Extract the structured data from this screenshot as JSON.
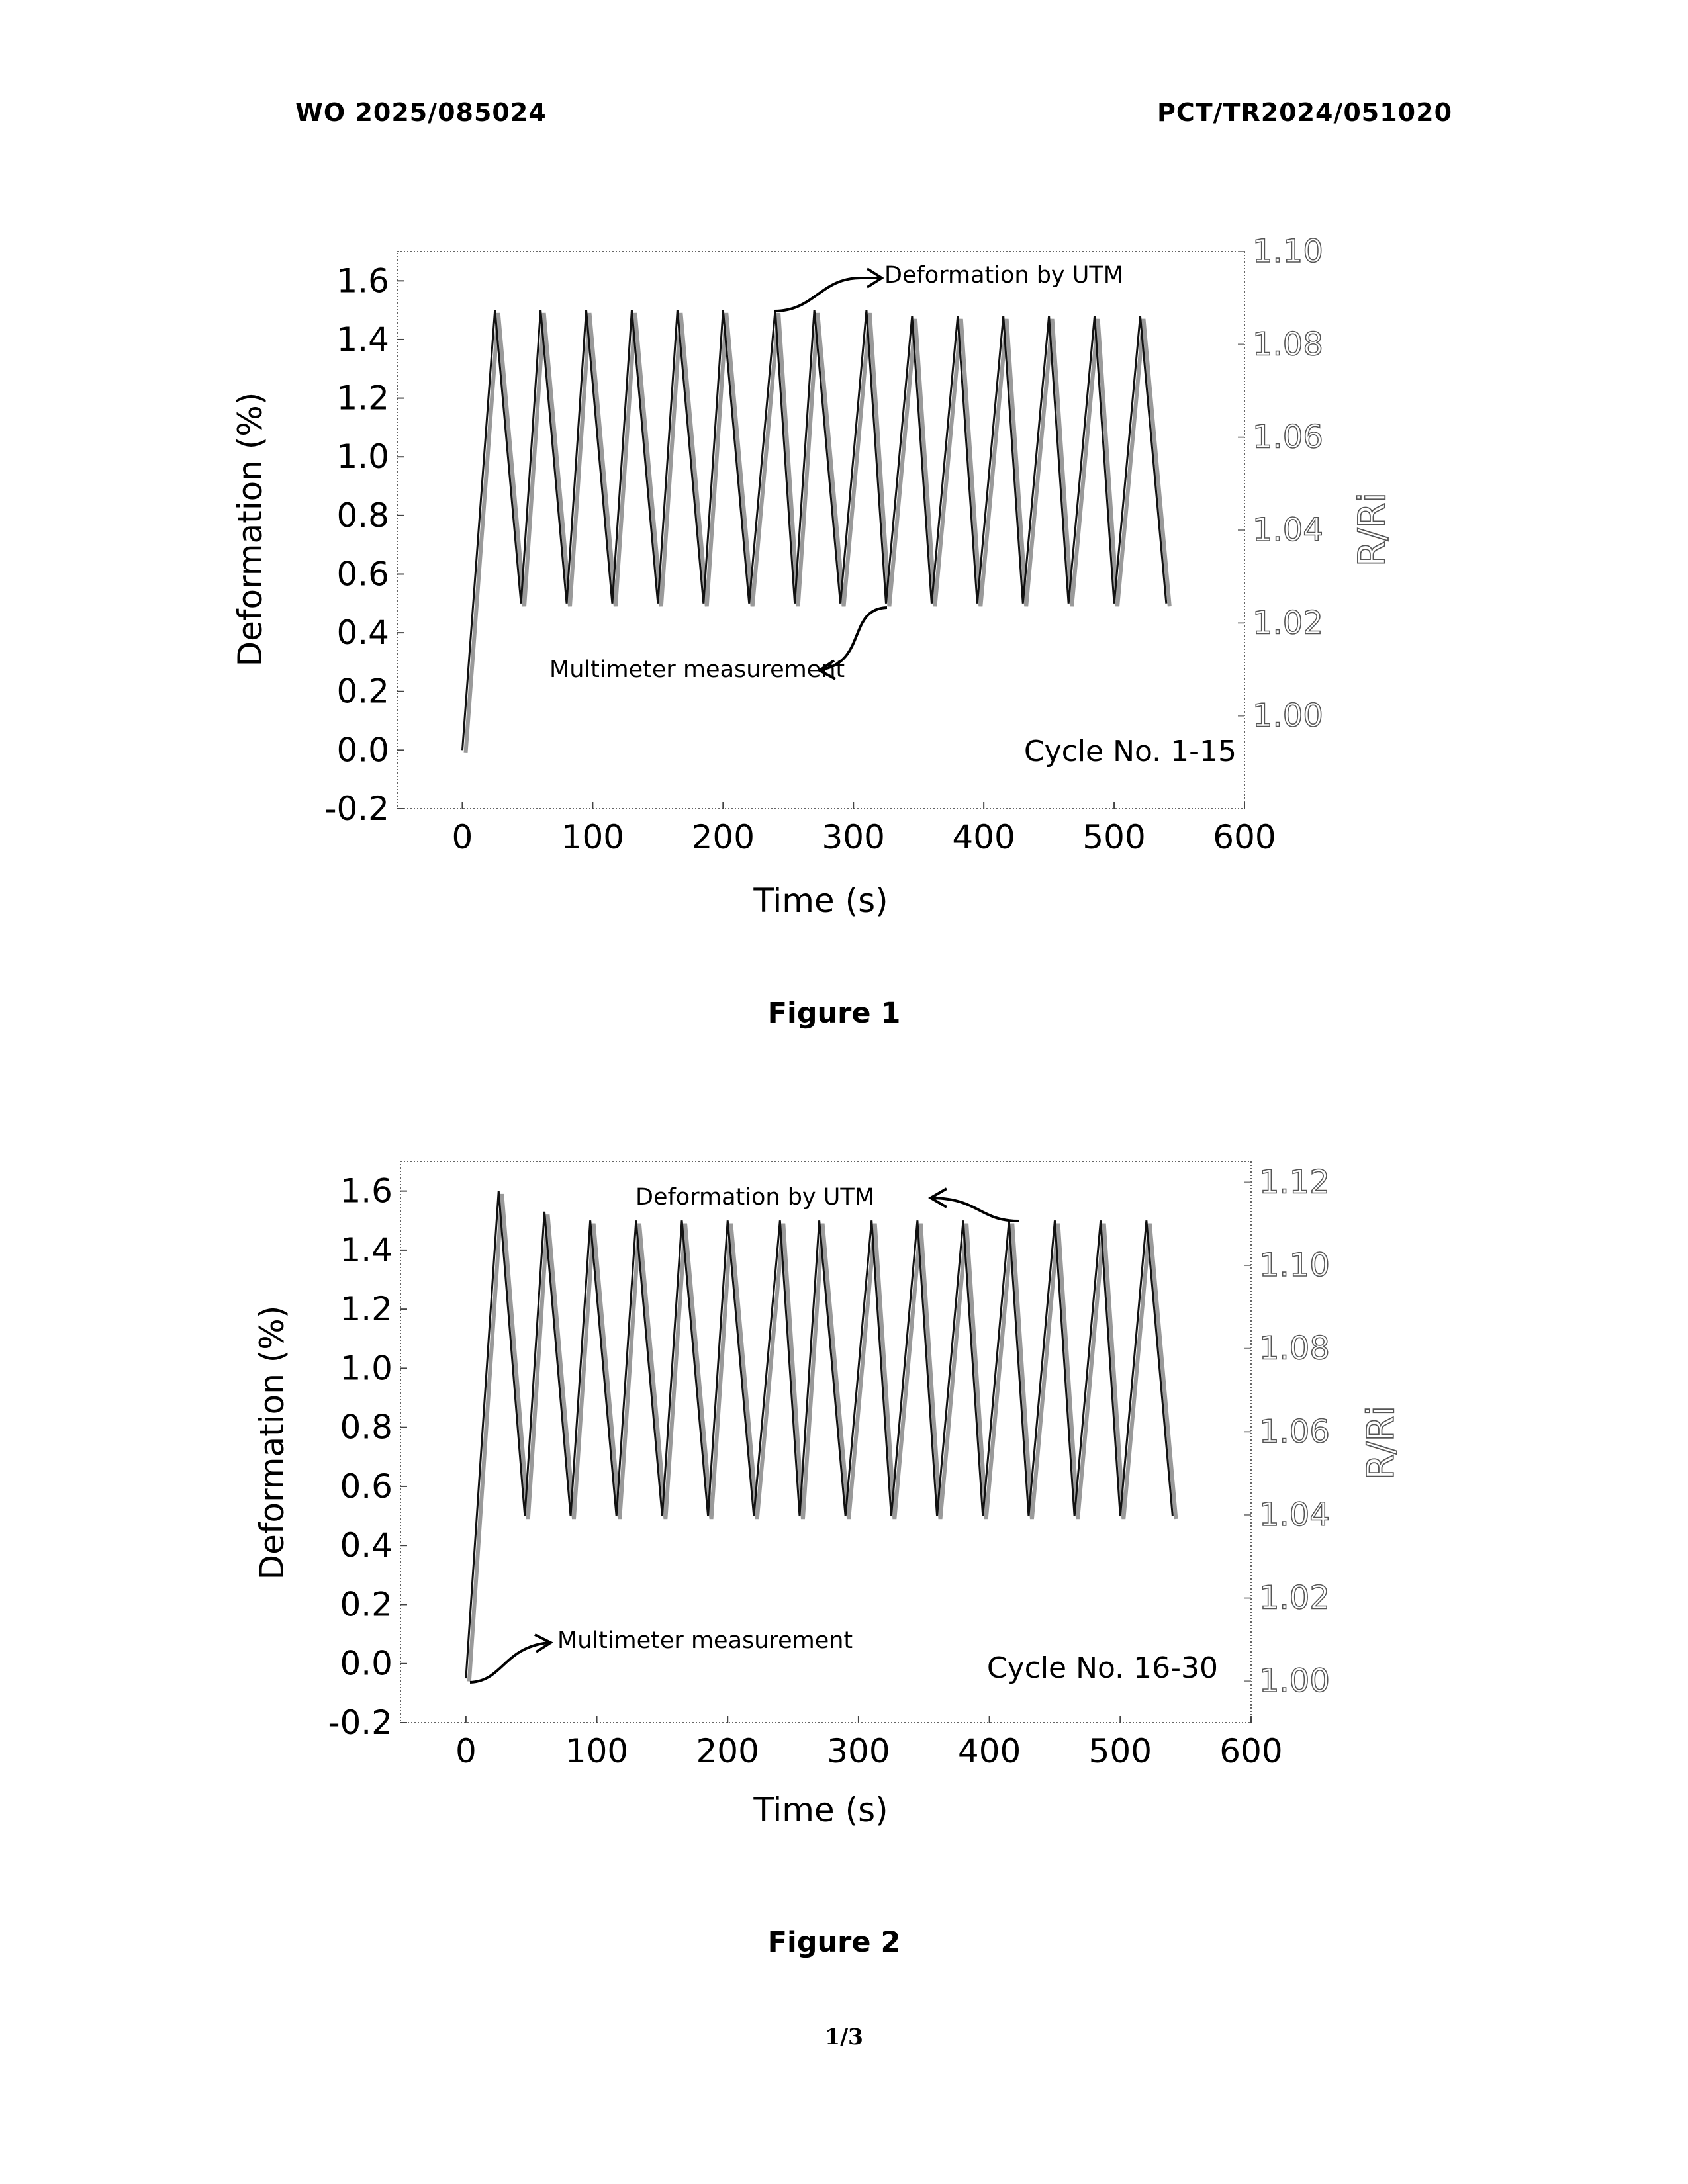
{
  "header": {
    "left": "WO 2025/085024",
    "right": "PCT/TR2024/051020"
  },
  "page_number": "1/3",
  "figures": [
    {
      "caption": "Figure 1"
    },
    {
      "caption": "Figure 2"
    }
  ],
  "chart_data": [
    {
      "type": "line",
      "title": "",
      "xlabel": "Time (s)",
      "ylabel": "Deformation (%)",
      "y2label": "R/Ri",
      "xlim": [
        -50,
        600
      ],
      "ylim": [
        -0.2,
        1.7
      ],
      "y2lim": [
        0.98,
        1.1
      ],
      "xticks": [
        "0",
        "100",
        "200",
        "300",
        "400",
        "500",
        "600"
      ],
      "yticks": [
        "-0.2",
        "0.0",
        "0.2",
        "0.4",
        "0.6",
        "0.8",
        "1.0",
        "1.2",
        "1.4",
        "1.6"
      ],
      "y2ticks": [
        "1.00",
        "1.02",
        "1.04",
        "1.06",
        "1.08",
        "1.10"
      ],
      "annotations": {
        "utm": "Deformation by UTM",
        "multimeter": "Multimeter measurement",
        "cycle": "Cycle No. 1-15"
      },
      "series": [
        {
          "x": [
            0,
            25,
            45,
            60,
            80,
            95,
            115,
            130,
            150,
            165,
            185,
            200,
            220,
            240,
            255,
            270,
            290,
            310,
            325,
            345,
            360,
            380,
            395,
            415,
            430,
            450,
            465,
            485,
            500,
            520,
            540
          ],
          "values": [
            0.0,
            1.5,
            0.5,
            1.5,
            0.5,
            1.5,
            0.5,
            1.5,
            0.5,
            1.5,
            0.5,
            1.5,
            0.5,
            1.5,
            0.5,
            1.5,
            0.5,
            1.5,
            0.5,
            1.48,
            0.5,
            1.48,
            0.5,
            1.48,
            0.5,
            1.48,
            0.5,
            1.48,
            0.5,
            1.48,
            0.5
          ]
        }
      ]
    },
    {
      "type": "line",
      "title": "",
      "xlabel": "Time (s)",
      "ylabel": "Deformation (%)",
      "y2label": "R/Ri",
      "xlim": [
        -50,
        600
      ],
      "ylim": [
        -0.2,
        1.7
      ],
      "y2lim": [
        0.99,
        1.125
      ],
      "xticks": [
        "0",
        "100",
        "200",
        "300",
        "400",
        "500",
        "600"
      ],
      "yticks": [
        "-0.2",
        "0.0",
        "0.2",
        "0.4",
        "0.6",
        "0.8",
        "1.0",
        "1.2",
        "1.4",
        "1.6"
      ],
      "y2ticks": [
        "1.00",
        "1.02",
        "1.04",
        "1.06",
        "1.08",
        "1.10",
        "1.12"
      ],
      "annotations": {
        "utm": "Deformation by UTM",
        "multimeter": "Multimeter measurement",
        "cycle": "Cycle No. 16-30"
      },
      "series": [
        {
          "x": [
            0,
            25,
            45,
            60,
            80,
            95,
            115,
            130,
            150,
            165,
            185,
            200,
            220,
            240,
            255,
            270,
            290,
            310,
            325,
            345,
            360,
            380,
            395,
            415,
            430,
            450,
            465,
            485,
            500,
            520,
            540
          ],
          "values": [
            -0.05,
            1.6,
            0.5,
            1.53,
            0.5,
            1.5,
            0.5,
            1.5,
            0.5,
            1.5,
            0.5,
            1.5,
            0.5,
            1.5,
            0.5,
            1.5,
            0.5,
            1.5,
            0.5,
            1.5,
            0.5,
            1.5,
            0.5,
            1.5,
            0.5,
            1.5,
            0.5,
            1.5,
            0.5,
            1.5,
            0.5
          ]
        }
      ]
    }
  ]
}
